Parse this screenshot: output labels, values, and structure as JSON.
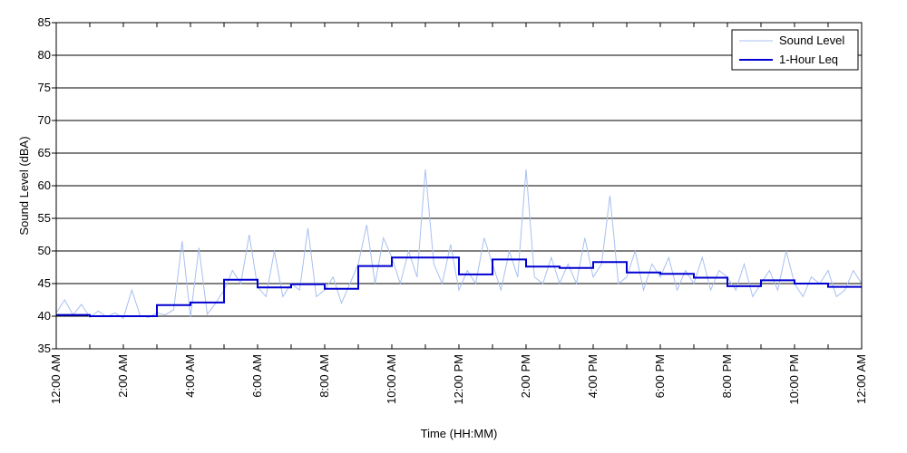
{
  "chart_data": {
    "type": "line",
    "xlabel": "Time (HH:MM)",
    "ylabel": "Sound Level (dBA)",
    "ylim": [
      35,
      85
    ],
    "yticks": [
      35,
      40,
      45,
      50,
      55,
      60,
      65,
      70,
      75,
      80,
      85
    ],
    "xlim_hours": [
      0,
      24
    ],
    "xticks": [
      {
        "hour": 0,
        "label": "12:00 AM"
      },
      {
        "hour": 2,
        "label": "2:00 AM"
      },
      {
        "hour": 4,
        "label": "4:00 AM"
      },
      {
        "hour": 6,
        "label": "6:00 AM"
      },
      {
        "hour": 8,
        "label": "8:00 AM"
      },
      {
        "hour": 10,
        "label": "10:00 AM"
      },
      {
        "hour": 12,
        "label": "12:00 PM"
      },
      {
        "hour": 14,
        "label": "2:00 PM"
      },
      {
        "hour": 16,
        "label": "4:00 PM"
      },
      {
        "hour": 18,
        "label": "6:00 PM"
      },
      {
        "hour": 20,
        "label": "8:00 PM"
      },
      {
        "hour": 22,
        "label": "10:00 PM"
      },
      {
        "hour": 24,
        "label": "12:00 AM"
      }
    ],
    "grid": "horizontal",
    "legend_position": "top-right",
    "series": [
      {
        "name": "Sound Level",
        "color": "#a8c0f0",
        "style": "thin-line",
        "x": [
          0.0,
          0.25,
          0.5,
          0.75,
          1.0,
          1.25,
          1.5,
          1.75,
          2.0,
          2.25,
          2.5,
          2.75,
          3.0,
          3.25,
          3.5,
          3.75,
          4.0,
          4.25,
          4.5,
          4.75,
          5.0,
          5.25,
          5.5,
          5.75,
          6.0,
          6.25,
          6.5,
          6.75,
          7.0,
          7.25,
          7.5,
          7.75,
          8.0,
          8.25,
          8.5,
          8.75,
          9.0,
          9.25,
          9.5,
          9.75,
          10.0,
          10.25,
          10.5,
          10.75,
          11.0,
          11.25,
          11.5,
          11.75,
          12.0,
          12.25,
          12.5,
          12.75,
          13.0,
          13.25,
          13.5,
          13.75,
          14.0,
          14.25,
          14.5,
          14.75,
          15.0,
          15.25,
          15.5,
          15.75,
          16.0,
          16.25,
          16.5,
          16.75,
          17.0,
          17.25,
          17.5,
          17.75,
          18.0,
          18.25,
          18.5,
          18.75,
          19.0,
          19.25,
          19.5,
          19.75,
          20.0,
          20.25,
          20.5,
          20.75,
          21.0,
          21.25,
          21.5,
          21.75,
          22.0,
          22.25,
          22.5,
          22.75,
          23.0,
          23.25,
          23.5,
          23.75,
          24.0
        ],
        "y": [
          40.5,
          42.5,
          40.2,
          41.8,
          39.8,
          40.8,
          39.9,
          40.5,
          39.7,
          44,
          40.1,
          39.8,
          40.5,
          40.2,
          41,
          51.5,
          39.9,
          50.5,
          40.3,
          42,
          44,
          47,
          45,
          52.5,
          44.5,
          43,
          50,
          43,
          45,
          44,
          53.5,
          43,
          44,
          46,
          42,
          45,
          48,
          54,
          45,
          52,
          49,
          45,
          50,
          46,
          62.5,
          48,
          45,
          51,
          44,
          47,
          45,
          52,
          48,
          44,
          50,
          46,
          62.5,
          46,
          45,
          49,
          45,
          48,
          45,
          52,
          46,
          48,
          58.5,
          45,
          46,
          50,
          44,
          48,
          46,
          49,
          44,
          47,
          45,
          49,
          44,
          47,
          46,
          44,
          48,
          43,
          45,
          47,
          44,
          50,
          45,
          43,
          46,
          45,
          47,
          43,
          44,
          47,
          45
        ]
      },
      {
        "name": "1-Hour Leq",
        "color": "#0000d0",
        "style": "step",
        "x": [
          0,
          1,
          2,
          3,
          4,
          5,
          6,
          7,
          8,
          9,
          10,
          11,
          12,
          13,
          14,
          15,
          16,
          17,
          18,
          19,
          20,
          21,
          22,
          23
        ],
        "y": [
          40.2,
          40.0,
          40.0,
          41.7,
          42.1,
          45.6,
          44.4,
          44.9,
          44.2,
          47.7,
          49.0,
          49.0,
          46.4,
          48.7,
          47.6,
          47.4,
          48.3,
          46.7,
          46.5,
          45.9,
          44.6,
          45.5,
          45.0,
          44.5
        ]
      }
    ]
  }
}
